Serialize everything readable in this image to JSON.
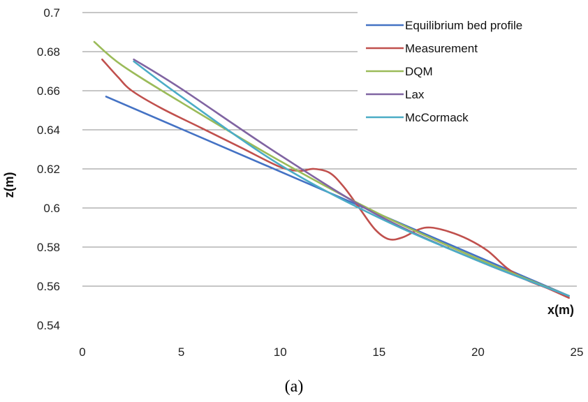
{
  "chart_data": {
    "type": "line",
    "title": "",
    "xlabel": "x(m)",
    "ylabel": "z(m)",
    "caption": "(a)",
    "xlim": [
      0,
      25
    ],
    "ylim": [
      0.54,
      0.7
    ],
    "x_ticks": [
      "0",
      "5",
      "10",
      "15",
      "20",
      "25"
    ],
    "x_tick_values": [
      0,
      5,
      10,
      15,
      20,
      25
    ],
    "y_ticks": [
      "0.54",
      "0.56",
      "0.58",
      "0.6",
      "0.62",
      "0.64",
      "0.66",
      "0.68",
      "0.7"
    ],
    "y_tick_values": [
      0.54,
      0.56,
      0.58,
      0.6,
      0.62,
      0.64,
      0.66,
      0.68,
      0.7
    ],
    "grid": "horizontal",
    "legend_position": "top-right",
    "series": [
      {
        "name": "Equilibrium bed profile",
        "color": "#4472c4",
        "x": [
          1.2,
          24.6
        ],
        "y": [
          0.657,
          0.555
        ]
      },
      {
        "name": "Measurement",
        "color": "#c0504d",
        "x": [
          1.0,
          1.8,
          2.5,
          4.0,
          6.0,
          8.0,
          10.0,
          11.0,
          11.7,
          12.5,
          13.2,
          14.0,
          14.8,
          15.5,
          16.2,
          17.0,
          17.6,
          18.5,
          19.5,
          20.5,
          21.5,
          22.5,
          23.5,
          24.6
        ],
        "y": [
          0.676,
          0.667,
          0.66,
          0.651,
          0.641,
          0.631,
          0.621,
          0.619,
          0.62,
          0.618,
          0.611,
          0.6,
          0.589,
          0.584,
          0.585,
          0.589,
          0.59,
          0.588,
          0.584,
          0.578,
          0.569,
          0.563,
          0.559,
          0.554
        ]
      },
      {
        "name": "DQM",
        "color": "#9bbb59",
        "x": [
          0.6,
          2.0,
          5.0,
          10.0,
          15.0,
          20.0,
          24.6
        ],
        "y": [
          0.685,
          0.673,
          0.654,
          0.624,
          0.597,
          0.574,
          0.555
        ]
      },
      {
        "name": "Lax",
        "color": "#8064a2",
        "x": [
          2.6,
          5.0,
          10.0,
          15.0,
          20.0,
          24.6
        ],
        "y": [
          0.676,
          0.661,
          0.627,
          0.596,
          0.573,
          0.555
        ]
      },
      {
        "name": "McCormack",
        "color": "#4bacc6",
        "x": [
          2.6,
          5.0,
          10.0,
          15.0,
          20.0,
          24.6
        ],
        "y": [
          0.675,
          0.657,
          0.622,
          0.595,
          0.573,
          0.555
        ]
      }
    ]
  }
}
